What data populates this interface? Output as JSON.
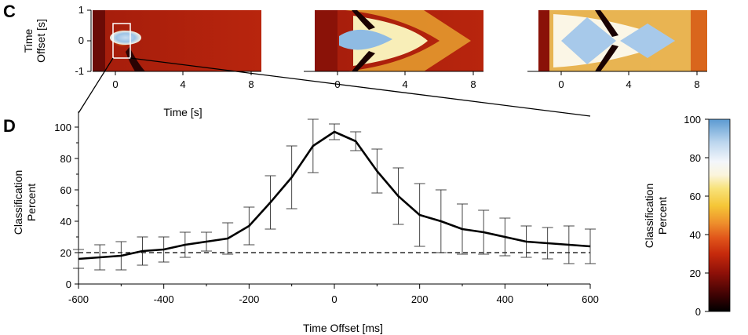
{
  "panel_labels": {
    "c": "C",
    "d": "D"
  },
  "colors": {
    "line": "#000000",
    "chance": "#000000",
    "colormap": [
      "#000000",
      "#5a0505",
      "#b81a0a",
      "#d93a10",
      "#e8772a",
      "#f3b937",
      "#f8e070",
      "#ffffff",
      "#c6dcf0",
      "#9cc3e6",
      "#5b9ad2"
    ]
  },
  "heatmaps": {
    "y_title": [
      "Time",
      "Offset [s]"
    ],
    "y_ticks": [
      "1",
      "0",
      "-1"
    ],
    "x_ticks": [
      "0",
      "4",
      "8"
    ],
    "x_title": "Time [s]"
  },
  "colorbar": {
    "title": [
      "Classification",
      "Percent"
    ],
    "ticks": [
      "100",
      "80",
      "60",
      "40",
      "20",
      "0"
    ]
  },
  "chart_data": {
    "type": "line",
    "xlabel": "Time Offset [ms]",
    "ylabel_lines": [
      "Classification",
      "Percent"
    ],
    "xlim": [
      -600,
      600
    ],
    "ylim": [
      0,
      105
    ],
    "x_ticks": [
      "-600",
      "-400",
      "-200",
      "0",
      "200",
      "400",
      "600"
    ],
    "y_ticks": [
      "0",
      "20",
      "40",
      "60",
      "80",
      "100"
    ],
    "chance_level": 20,
    "x": [
      -600,
      -550,
      -500,
      -450,
      -400,
      -350,
      -300,
      -250,
      -200,
      -150,
      -100,
      -50,
      0,
      50,
      100,
      150,
      200,
      250,
      300,
      350,
      400,
      450,
      500,
      550,
      600
    ],
    "y": [
      16,
      17,
      18,
      21,
      22,
      25,
      27,
      29,
      37,
      52,
      68,
      88,
      97,
      91,
      72,
      56,
      44,
      40,
      35,
      33,
      30,
      27,
      26,
      25,
      24
    ],
    "err": [
      6,
      8,
      9,
      9,
      8,
      8,
      6,
      10,
      12,
      17,
      20,
      17,
      5,
      6,
      14,
      18,
      20,
      20,
      16,
      14,
      12,
      10,
      10,
      12,
      11
    ],
    "grid": false,
    "legend": "none"
  }
}
